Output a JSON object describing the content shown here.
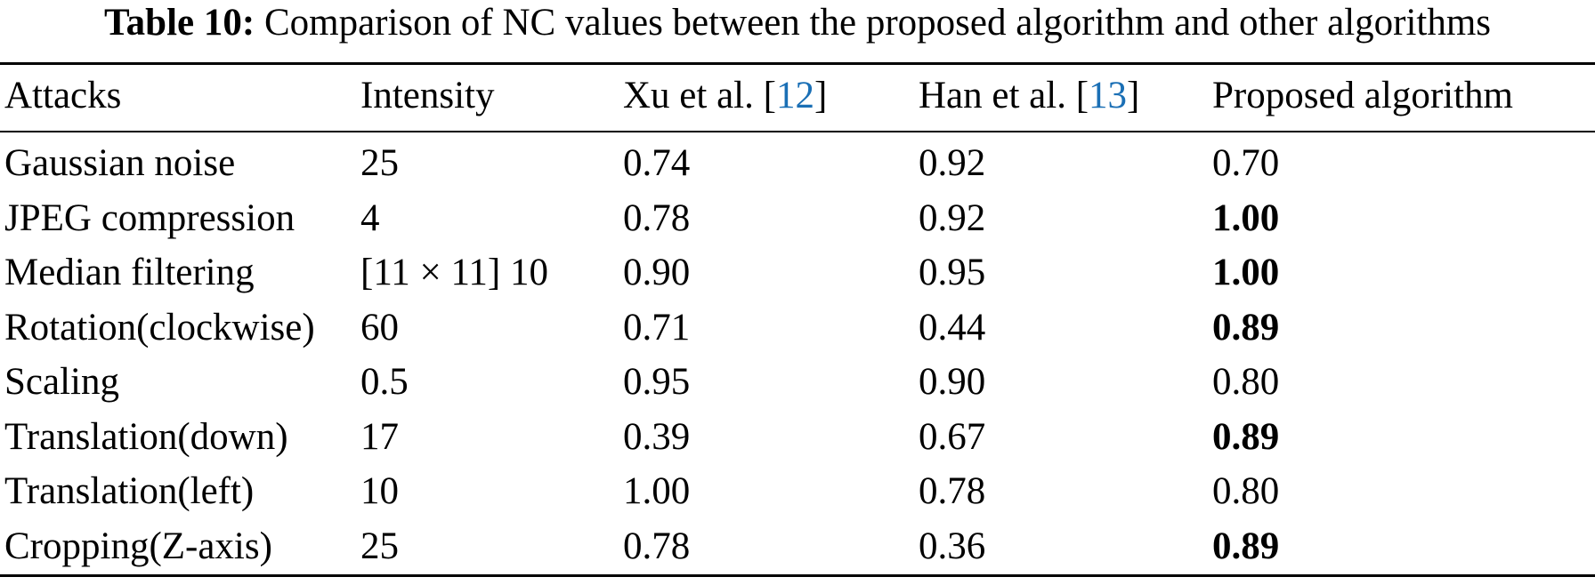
{
  "caption": {
    "label": "Table 10:",
    "text": "Comparison of NC values between the proposed algorithm and other algorithms"
  },
  "table": {
    "headers": [
      {
        "pre": "Attacks",
        "ref": "",
        "post": ""
      },
      {
        "pre": "Intensity",
        "ref": "",
        "post": ""
      },
      {
        "pre": "Xu et al. [",
        "ref": "12",
        "post": "]"
      },
      {
        "pre": "Han et al. [",
        "ref": "13",
        "post": "]"
      },
      {
        "pre": "Proposed algorithm",
        "ref": "",
        "post": ""
      }
    ],
    "rows": [
      {
        "attack": "Gaussian noise",
        "intensity": "25",
        "xu": "0.74",
        "han": "0.92",
        "proposed": "0.70",
        "bold": false
      },
      {
        "attack": "JPEG compression",
        "intensity": "4",
        "xu": "0.78",
        "han": "0.92",
        "proposed": "1.00",
        "bold": true
      },
      {
        "attack": "Median filtering",
        "intensity": "[11 × 11] 10",
        "xu": "0.90",
        "han": "0.95",
        "proposed": "1.00",
        "bold": true
      },
      {
        "attack": "Rotation(clockwise)",
        "intensity": "60",
        "xu": "0.71",
        "han": "0.44",
        "proposed": "0.89",
        "bold": true
      },
      {
        "attack": "Scaling",
        "intensity": "0.5",
        "xu": "0.95",
        "han": "0.90",
        "proposed": "0.80",
        "bold": false
      },
      {
        "attack": "Translation(down)",
        "intensity": "17",
        "xu": "0.39",
        "han": "0.67",
        "proposed": "0.89",
        "bold": true
      },
      {
        "attack": "Translation(left)",
        "intensity": "10",
        "xu": "1.00",
        "han": "0.78",
        "proposed": "0.80",
        "bold": false
      },
      {
        "attack": "Cropping(Z-axis)",
        "intensity": "25",
        "xu": "0.78",
        "han": "0.36",
        "proposed": "0.89",
        "bold": true
      }
    ]
  }
}
